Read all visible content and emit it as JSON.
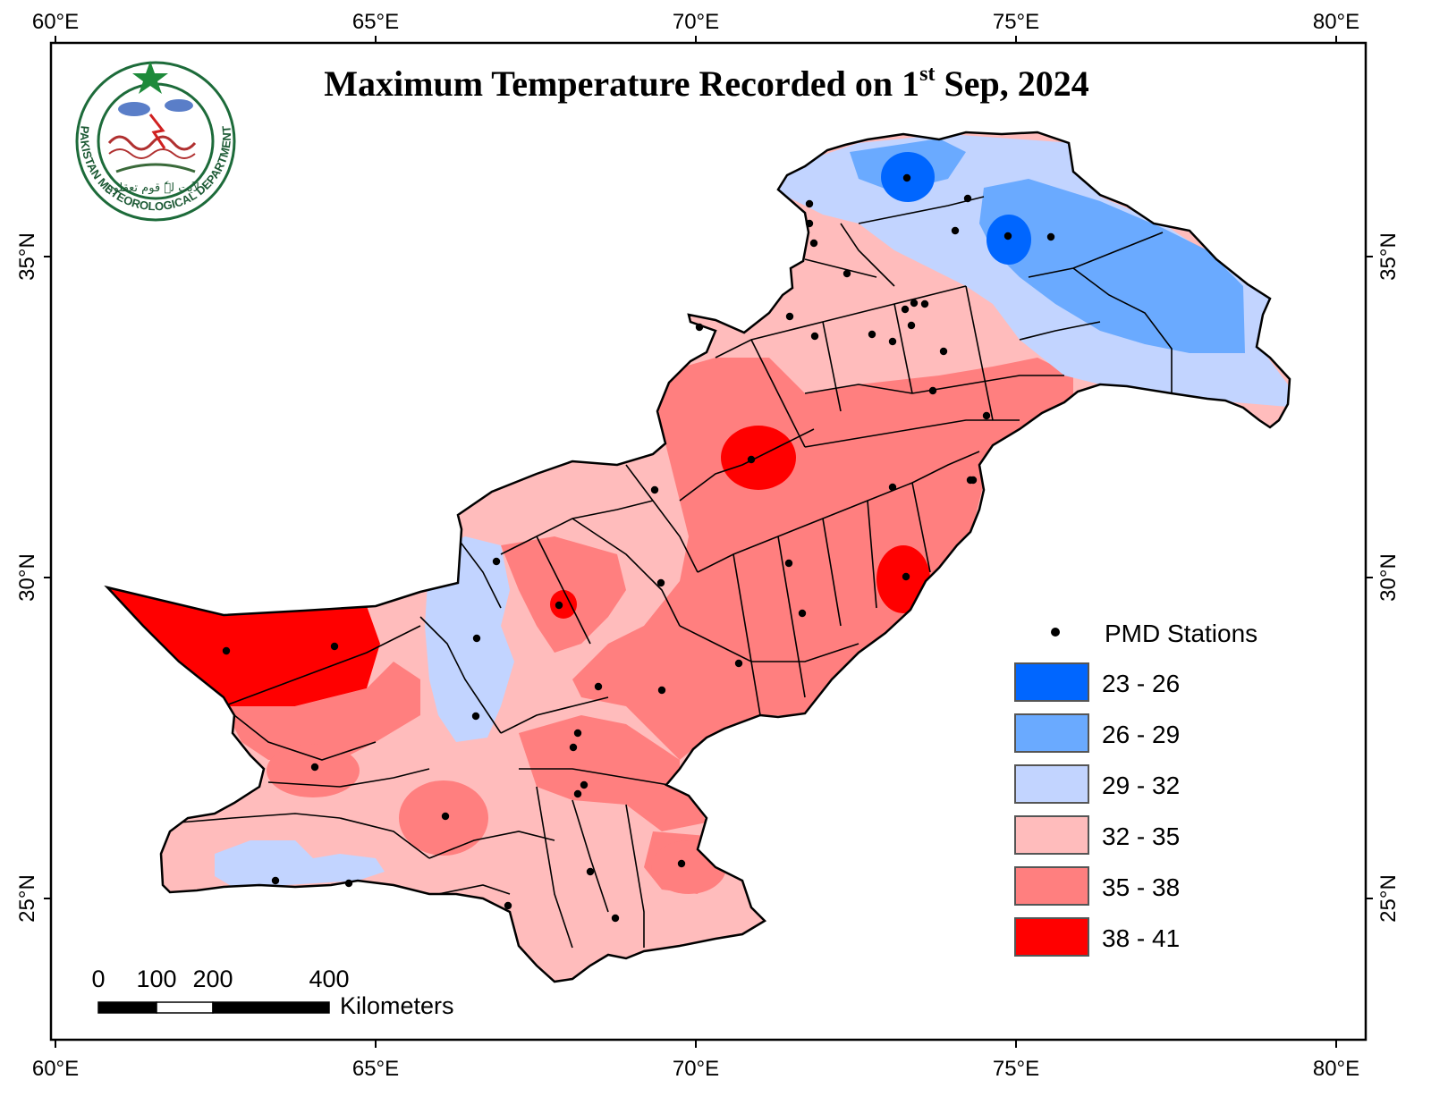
{
  "title": {
    "prefix": "Maximum Temperature Recorded on 1",
    "superscript": "st",
    "suffix": " Sep, 2024"
  },
  "axes": {
    "longitude_ticks": [
      "60°E",
      "65°E",
      "70°E",
      "75°E",
      "80°E"
    ],
    "latitude_ticks": [
      "35°N",
      "30°N",
      "25°N"
    ]
  },
  "logo": {
    "text": "PAKISTAN METEOROLOGICAL DEPARTMENT",
    "motto": "لاَیت لہٗ قوم تعقلون"
  },
  "legend": {
    "stations_label": "PMD Stations",
    "classes": [
      {
        "label": "23 - 26",
        "color": "#0066ff"
      },
      {
        "label": "26 - 29",
        "color": "#6aaaff"
      },
      {
        "label": "29 - 32",
        "color": "#c2d4ff"
      },
      {
        "label": "32 - 35",
        "color": "#ffbcbc"
      },
      {
        "label": "35 - 38",
        "color": "#ff7f7f"
      },
      {
        "label": "38 - 41",
        "color": "#ff0000"
      }
    ]
  },
  "scale_bar": {
    "ticks": [
      "0",
      "100",
      "200",
      "400"
    ],
    "unit": "Kilometers"
  }
}
